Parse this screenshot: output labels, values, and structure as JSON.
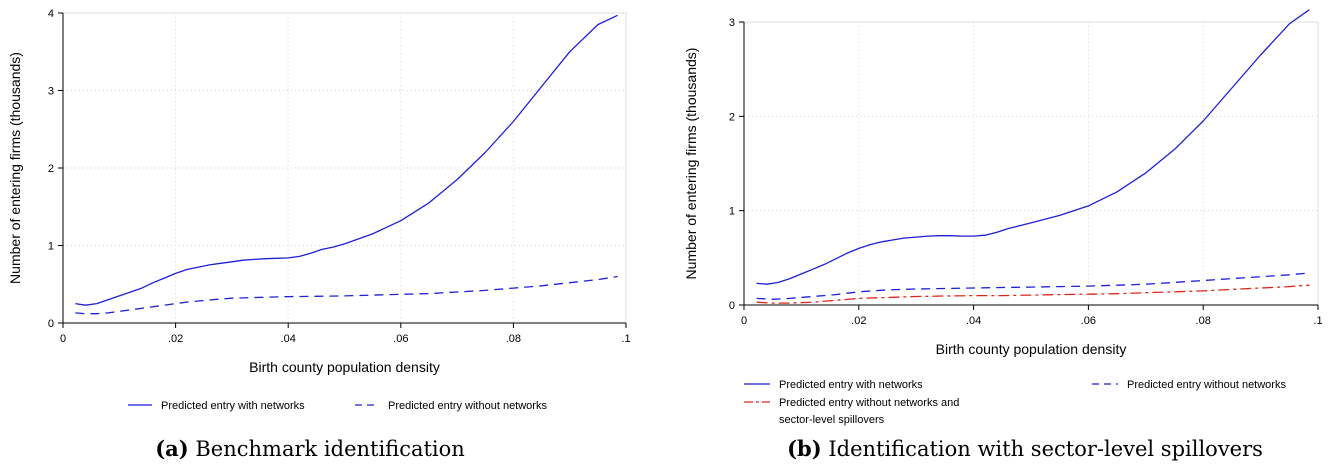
{
  "panels": [
    {
      "caption": {
        "tag": "(a)",
        "text": "Benchmark identification"
      },
      "chart_data": {
        "type": "line",
        "xlabel": "Birth county population density",
        "ylabel": "Number of entering firms (thousands)",
        "xlim": [
          0,
          0.1
        ],
        "ylim": [
          0,
          4
        ],
        "xticks": [
          0,
          0.02,
          0.04,
          0.06,
          0.08,
          0.1
        ],
        "xtick_labels": [
          "0",
          ".02",
          ".04",
          ".06",
          ".08",
          ".1"
        ],
        "yticks": [
          0,
          1,
          2,
          3,
          4
        ],
        "ytick_labels": [
          "0",
          "1",
          "2",
          "3",
          "4"
        ],
        "grid": true,
        "legend_position": "bottom",
        "series": [
          {
            "name": "Predicted entry with networks",
            "color": "#1f1fd6",
            "dash": "solid",
            "x": [
              0.0022,
              0.004,
              0.006,
              0.008,
              0.01,
              0.012,
              0.014,
              0.016,
              0.018,
              0.02,
              0.022,
              0.024,
              0.026,
              0.028,
              0.03,
              0.032,
              0.034,
              0.036,
              0.038,
              0.04,
              0.042,
              0.044,
              0.046,
              0.048,
              0.05,
              0.055,
              0.06,
              0.065,
              0.07,
              0.075,
              0.08,
              0.085,
              0.09,
              0.095,
              0.0985
            ],
            "y": [
              0.25,
              0.23,
              0.25,
              0.3,
              0.35,
              0.4,
              0.45,
              0.52,
              0.58,
              0.64,
              0.69,
              0.72,
              0.75,
              0.77,
              0.79,
              0.81,
              0.82,
              0.83,
              0.835,
              0.84,
              0.86,
              0.9,
              0.95,
              0.98,
              1.02,
              1.15,
              1.32,
              1.55,
              1.85,
              2.2,
              2.6,
              3.05,
              3.5,
              3.85,
              3.97
            ]
          },
          {
            "name": "Predicted entry without networks",
            "color": "#1f1fd6",
            "dash": "dashed",
            "x": [
              0.0022,
              0.004,
              0.006,
              0.008,
              0.01,
              0.012,
              0.015,
              0.018,
              0.02,
              0.022,
              0.025,
              0.028,
              0.03,
              0.035,
              0.04,
              0.045,
              0.05,
              0.055,
              0.06,
              0.065,
              0.07,
              0.075,
              0.08,
              0.085,
              0.09,
              0.095,
              0.0985
            ],
            "y": [
              0.13,
              0.12,
              0.12,
              0.13,
              0.15,
              0.17,
              0.2,
              0.23,
              0.25,
              0.27,
              0.29,
              0.31,
              0.32,
              0.33,
              0.34,
              0.345,
              0.35,
              0.36,
              0.37,
              0.38,
              0.4,
              0.42,
              0.45,
              0.48,
              0.52,
              0.56,
              0.6
            ]
          }
        ]
      }
    },
    {
      "caption": {
        "tag": "(b)",
        "text": "Identification with sector-level spillovers"
      },
      "chart_data": {
        "type": "line",
        "xlabel": "Birth county population density",
        "ylabel": "Number of entering firms (thousands)",
        "xlim": [
          0,
          0.1
        ],
        "ylim": [
          0,
          3
        ],
        "xticks": [
          0,
          0.02,
          0.04,
          0.06,
          0.08,
          0.1
        ],
        "xtick_labels": [
          "0",
          ".02",
          ".04",
          ".06",
          ".08",
          ".1"
        ],
        "yticks": [
          0,
          1,
          2,
          3
        ],
        "ytick_labels": [
          "0",
          "1",
          "2",
          "3"
        ],
        "grid": true,
        "legend_position": "bottom",
        "series": [
          {
            "name": "Predicted entry with networks",
            "color": "#1f1fd6",
            "dash": "solid",
            "x": [
              0.0022,
              0.004,
              0.006,
              0.008,
              0.01,
              0.012,
              0.014,
              0.016,
              0.018,
              0.02,
              0.022,
              0.024,
              0.026,
              0.028,
              0.03,
              0.032,
              0.034,
              0.036,
              0.038,
              0.04,
              0.042,
              0.044,
              0.046,
              0.048,
              0.05,
              0.055,
              0.06,
              0.065,
              0.07,
              0.075,
              0.08,
              0.085,
              0.09,
              0.095,
              0.0985
            ],
            "y": [
              0.23,
              0.22,
              0.24,
              0.28,
              0.33,
              0.38,
              0.43,
              0.49,
              0.55,
              0.6,
              0.64,
              0.67,
              0.69,
              0.71,
              0.72,
              0.73,
              0.735,
              0.735,
              0.73,
              0.73,
              0.74,
              0.77,
              0.81,
              0.84,
              0.87,
              0.95,
              1.05,
              1.2,
              1.4,
              1.65,
              1.95,
              2.3,
              2.65,
              2.98,
              3.13
            ]
          },
          {
            "name": "Predicted entry without networks",
            "color": "#1f1fd6",
            "dash": "dashed",
            "x": [
              0.0022,
              0.005,
              0.008,
              0.012,
              0.016,
              0.02,
              0.025,
              0.03,
              0.035,
              0.04,
              0.045,
              0.05,
              0.055,
              0.06,
              0.065,
              0.07,
              0.075,
              0.08,
              0.085,
              0.09,
              0.095,
              0.0985
            ],
            "y": [
              0.07,
              0.06,
              0.07,
              0.09,
              0.11,
              0.14,
              0.16,
              0.17,
              0.175,
              0.18,
              0.185,
              0.19,
              0.195,
              0.2,
              0.21,
              0.22,
              0.24,
              0.26,
              0.28,
              0.3,
              0.32,
              0.34
            ]
          },
          {
            "name": "Predicted entry without networks and sector-level spillovers",
            "color": "#e0261a",
            "dash": "dashdot",
            "x": [
              0.0022,
              0.005,
              0.008,
              0.012,
              0.016,
              0.02,
              0.025,
              0.03,
              0.035,
              0.04,
              0.045,
              0.05,
              0.055,
              0.06,
              0.065,
              0.07,
              0.075,
              0.08,
              0.085,
              0.09,
              0.095,
              0.0985
            ],
            "y": [
              0.03,
              0.02,
              0.02,
              0.03,
              0.05,
              0.07,
              0.08,
              0.09,
              0.095,
              0.1,
              0.1,
              0.105,
              0.11,
              0.115,
              0.12,
              0.13,
              0.14,
              0.15,
              0.165,
              0.18,
              0.195,
              0.21
            ]
          }
        ]
      }
    }
  ]
}
